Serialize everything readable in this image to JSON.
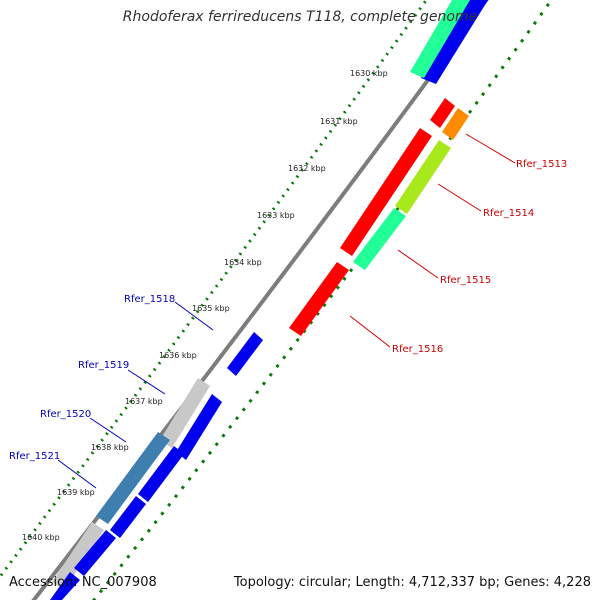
{
  "title": "Rhodoferax ferrireducens T118, complete genome",
  "footer": {
    "accession": "Accession: NC_007908",
    "summary": "Topology: circular; Length: 4,712,337 bp; Genes: 4,228"
  },
  "ticks": [
    "1630 kbp",
    "1631 kbp",
    "1632 kbp",
    "1633 kbp",
    "1634 kbp",
    "1635 kbp",
    "1636 kbp",
    "1637 kbp",
    "1638 kbp",
    "1639 kbp",
    "1640 kbp"
  ],
  "gene_labels": [
    "Rfer_1513",
    "Rfer_1514",
    "Rfer_1515",
    "Rfer_1516",
    "Rfer_1518",
    "Rfer_1519",
    "Rfer_1520",
    "Rfer_1521"
  ],
  "colors": {
    "backbone": "#7d7d7d",
    "forward_label": "#cc0000",
    "reverse_label": "#0000bb",
    "dots": "#0a7a0a",
    "red": "#ff0000",
    "orange": "#ff8c00",
    "yellowgreen": "#a8e81c",
    "green": "#22ff99",
    "blue": "#0000ee",
    "steelblue": "#3f7fb0",
    "grey": "#c8c8c8"
  }
}
